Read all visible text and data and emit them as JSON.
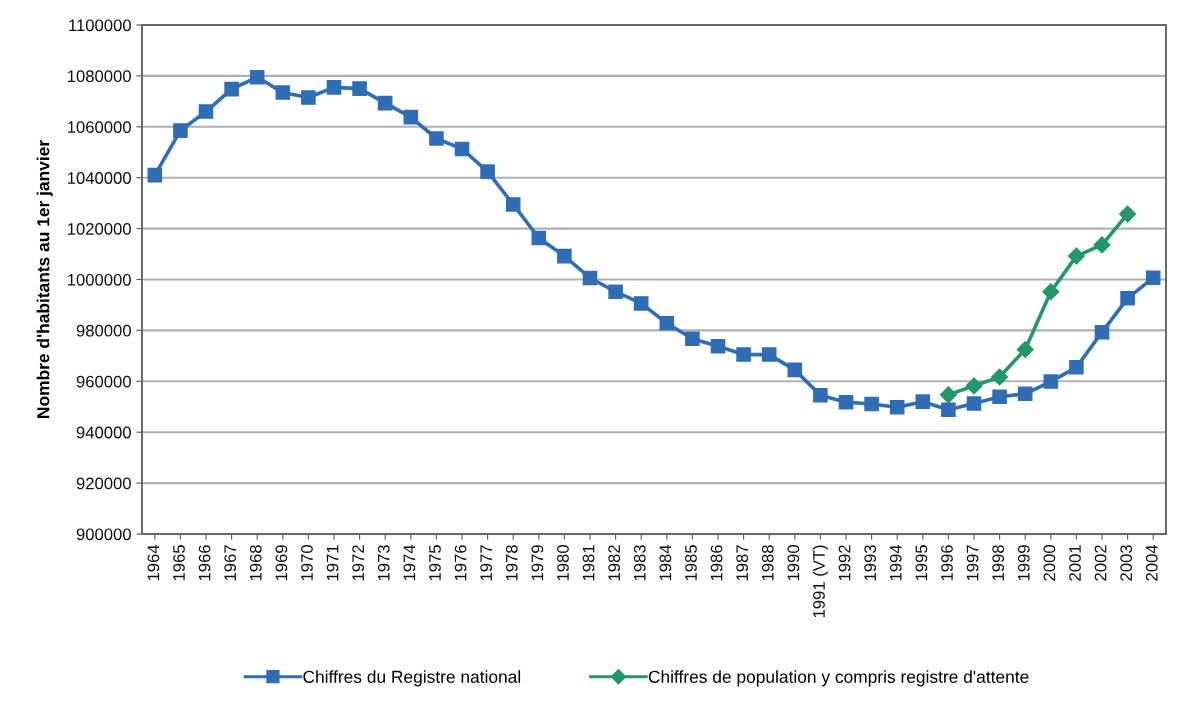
{
  "chart_data": {
    "type": "line",
    "ylabel": "Nombre d'habitants au 1er janvier",
    "categories": [
      "1964",
      "1965",
      "1966",
      "1967",
      "1968",
      "1969",
      "1970",
      "1971",
      "1972",
      "1973",
      "1974",
      "1975",
      "1976",
      "1977",
      "1978",
      "1979",
      "1980",
      "1981",
      "1982",
      "1983",
      "1984",
      "1985",
      "1986",
      "1987",
      "1988",
      "1990",
      "1991 (VT)",
      "1992",
      "1993",
      "1994",
      "1995",
      "1996",
      "1997",
      "1998",
      "1999",
      "2000",
      "2001",
      "2002",
      "2003",
      "2004"
    ],
    "series": [
      {
        "name": "Chiffres du Registre national",
        "color": "#2f6db5",
        "marker": "square",
        "values": [
          1041000,
          1058500,
          1066000,
          1074800,
          1079500,
          1073500,
          1071500,
          1075500,
          1075000,
          1069300,
          1063800,
          1055400,
          1051300,
          1042400,
          1029500,
          1016300,
          1009200,
          1000600,
          995200,
          990600,
          982800,
          976700,
          973800,
          970500,
          970500,
          964500,
          954500,
          951800,
          951100,
          949800,
          952000,
          948800,
          951300,
          953900,
          955100,
          959900,
          965500,
          979300,
          992600,
          1000700
        ]
      },
      {
        "name": "Chiffres de population y compris registre d'attente",
        "color": "#23976a",
        "marker": "diamond",
        "values": [
          null,
          null,
          null,
          null,
          null,
          null,
          null,
          null,
          null,
          null,
          null,
          null,
          null,
          null,
          null,
          null,
          null,
          null,
          null,
          null,
          null,
          null,
          null,
          null,
          null,
          null,
          null,
          null,
          null,
          null,
          null,
          954700,
          958200,
          961700,
          972500,
          995200,
          1009200,
          1013600,
          1025700,
          null
        ]
      }
    ],
    "ylim": [
      900000,
      1100000
    ],
    "yticks": [
      900000,
      920000,
      940000,
      960000,
      980000,
      1000000,
      1020000,
      1040000,
      1060000,
      1080000,
      1100000
    ],
    "grid": "y",
    "legend": "bottom"
  }
}
